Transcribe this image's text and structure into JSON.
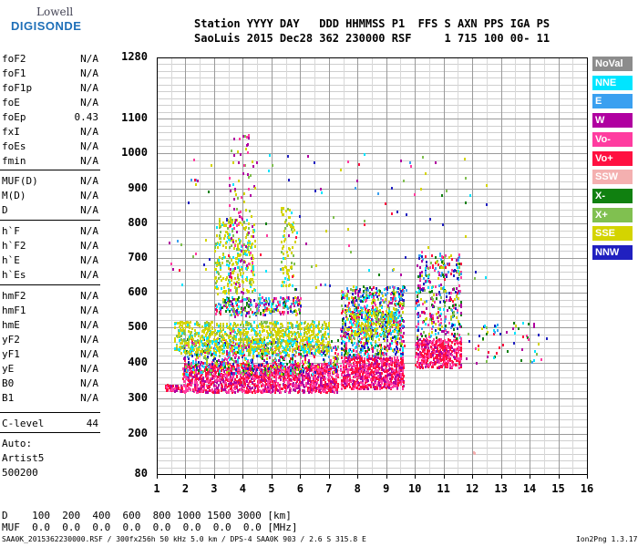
{
  "logo": {
    "line1": "Lowell",
    "line2": "DIGISONDE"
  },
  "header": {
    "line1": "Station YYYY DAY   DDD HHMMSS P1  FFS S AXN PPS IGA PS",
    "line2": "SaoLuis 2015 Dec28 362 230000 RSF     1 715 100 00- 11"
  },
  "params": [
    {
      "name": "foF2",
      "value": "N/A"
    },
    {
      "name": "foF1",
      "value": "N/A"
    },
    {
      "name": "foF1p",
      "value": "N/A"
    },
    {
      "name": "foE",
      "value": "N/A"
    },
    {
      "name": "foEp",
      "value": "0.43"
    },
    {
      "name": "fxI",
      "value": "N/A"
    },
    {
      "name": "foEs",
      "value": "N/A"
    },
    {
      "name": "fmin",
      "value": "N/A"
    },
    {
      "name": "MUF(D)",
      "value": "N/A"
    },
    {
      "name": "M(D)",
      "value": "N/A"
    },
    {
      "name": "D",
      "value": "N/A"
    },
    {
      "name": "h`F",
      "value": "N/A"
    },
    {
      "name": "h`F2",
      "value": "N/A"
    },
    {
      "name": "h`E",
      "value": "N/A"
    },
    {
      "name": "h`Es",
      "value": "N/A"
    },
    {
      "name": "hmF2",
      "value": "N/A"
    },
    {
      "name": "hmF1",
      "value": "N/A"
    },
    {
      "name": "hmE",
      "value": "N/A"
    },
    {
      "name": "yF2",
      "value": "N/A"
    },
    {
      "name": "yF1",
      "value": "N/A"
    },
    {
      "name": "yE",
      "value": "N/A"
    },
    {
      "name": "B0",
      "value": "N/A"
    },
    {
      "name": "B1",
      "value": "N/A"
    },
    {
      "name": "C-level",
      "value": "44"
    }
  ],
  "auto": {
    "label": "Auto:",
    "artist": "Artist5",
    "version": "500200"
  },
  "legend": [
    {
      "label": "NoVal",
      "color": "#8c8c8c"
    },
    {
      "label": "NNE",
      "color": "#00e5ff"
    },
    {
      "label": "E",
      "color": "#3aa0f0"
    },
    {
      "label": "W",
      "color": "#b000a0"
    },
    {
      "label": "Vo-",
      "color": "#ff3ca0"
    },
    {
      "label": "Vo+",
      "color": "#ff1040"
    },
    {
      "label": "SSW",
      "color": "#f4b0b0"
    },
    {
      "label": "X-",
      "color": "#108010"
    },
    {
      "label": "X+",
      "color": "#80c050"
    },
    {
      "label": "SSE",
      "color": "#d4d400"
    },
    {
      "label": "NNW",
      "color": "#2020c0"
    }
  ],
  "chart_data": {
    "type": "scatter",
    "x_ticks": [
      "1",
      "2",
      "3",
      "4",
      "5",
      "6",
      "7",
      "8",
      "9",
      "10",
      "11",
      "12",
      "13",
      "14",
      "15",
      "16"
    ],
    "y_ticks": [
      "80",
      "200",
      "300",
      "400",
      "500",
      "600",
      "700",
      "800",
      "900",
      "1000",
      "1100",
      "1280"
    ],
    "xlim": [
      1,
      16
    ],
    "ylim": [
      80,
      1280
    ],
    "y_scale": "quasi-log",
    "grid": true
  },
  "footer": {
    "d_row": "D    100  200  400  600  800 1000 1500 3000 [km]",
    "muf_row": "MUF  0.0  0.0  0.0  0.0  0.0  0.0  0.0  0.0 [MHz]",
    "file_line": "SAA0K_2015362230000.RSF / 300fx256h 50 kHz 5.0 km / DPS-4 SAA0K 903 / 2.6 S 315.8 E",
    "version": "Ion2Png 1.3.17"
  }
}
